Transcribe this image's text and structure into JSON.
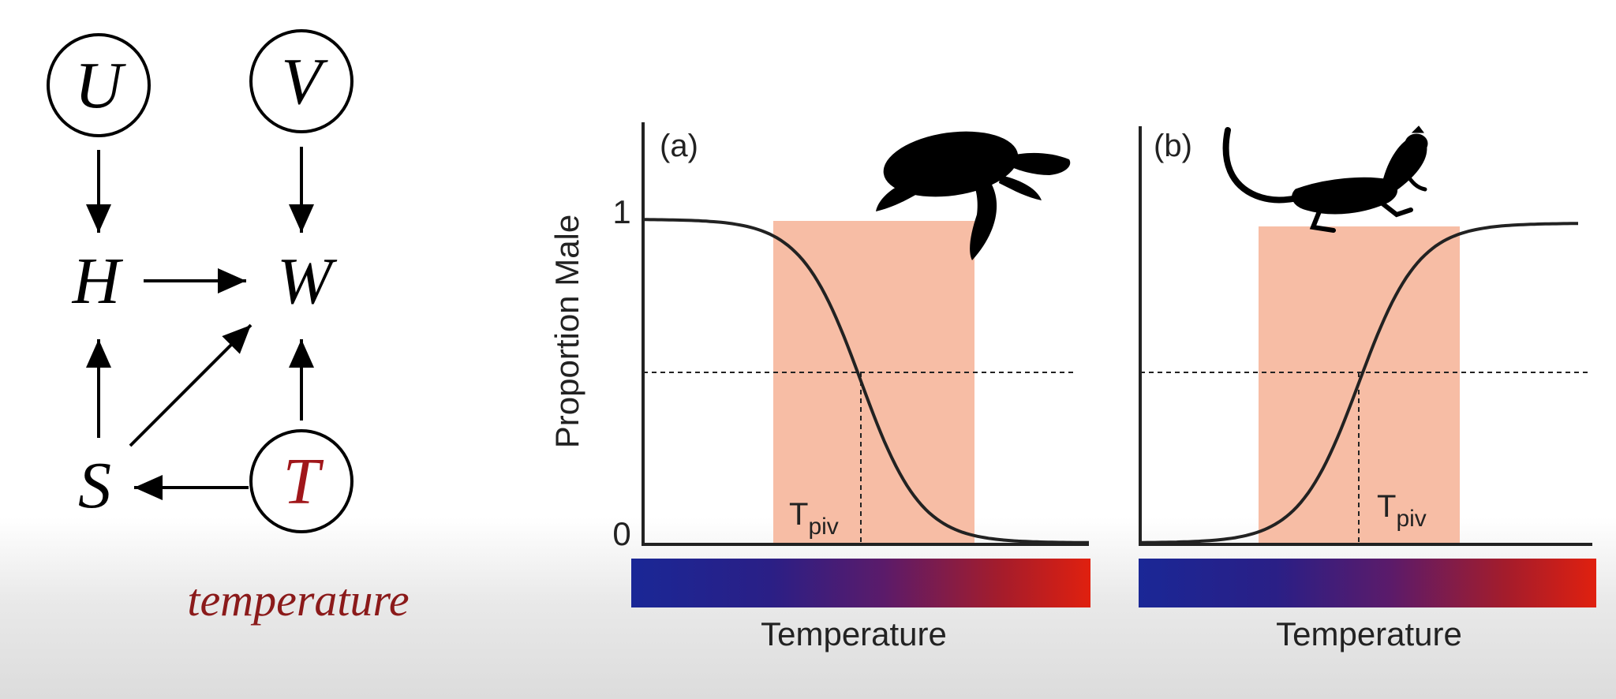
{
  "dag": {
    "nodes": [
      {
        "id": "U",
        "label": "U",
        "circled": true,
        "color": "#000000"
      },
      {
        "id": "V",
        "label": "V",
        "circled": true,
        "color": "#000000"
      },
      {
        "id": "H",
        "label": "H",
        "circled": false,
        "color": "#000000"
      },
      {
        "id": "W",
        "label": "W",
        "circled": false,
        "color": "#000000"
      },
      {
        "id": "S",
        "label": "S",
        "circled": false,
        "color": "#000000"
      },
      {
        "id": "T",
        "label": "T",
        "circled": true,
        "color": "#a0161a"
      }
    ],
    "edges": [
      {
        "from": "U",
        "to": "H"
      },
      {
        "from": "V",
        "to": "W"
      },
      {
        "from": "H",
        "to": "W"
      },
      {
        "from": "S",
        "to": "H"
      },
      {
        "from": "S",
        "to": "W"
      },
      {
        "from": "T",
        "to": "W"
      },
      {
        "from": "T",
        "to": "S"
      }
    ],
    "caption": "temperature",
    "caption_color": "#8b1a1a"
  },
  "panels": {
    "ylabel": "Proportion Male",
    "ytick_1": "1",
    "ytick_0": "0",
    "a": {
      "label": "(a)",
      "xlabel": "Temperature",
      "tpiv_main": "T",
      "tpiv_sub": "piv",
      "curve": "decreasing",
      "animal": "turtle-silhouette"
    },
    "b": {
      "label": "(b)",
      "xlabel": "Temperature",
      "tpiv_main": "T",
      "tpiv_sub": "piv",
      "curve": "increasing",
      "animal": "lizard-silhouette"
    },
    "shade_color": "#f7bda5",
    "gradient_colors": [
      "#1a2796",
      "#2a1f86",
      "#5b1b6a",
      "#a31c2c",
      "#e0200f"
    ]
  }
}
